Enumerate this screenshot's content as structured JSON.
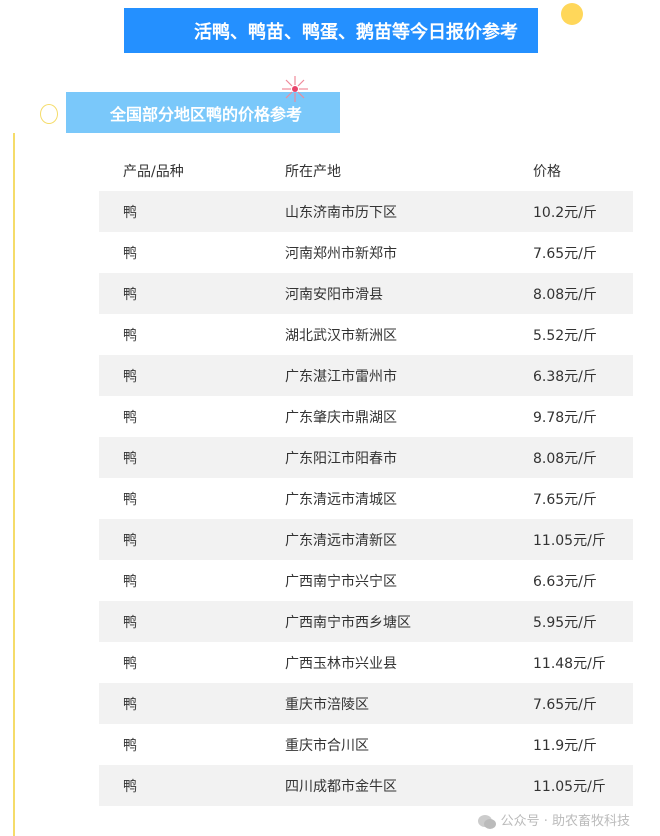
{
  "title": "活鸭、鸭苗、鸭蛋、鹅苗等今日报价参考",
  "subtitle": "全国部分地区鸭的价格参考",
  "table": {
    "headers": [
      "产品/品种",
      "所在产地",
      "价格"
    ],
    "rows": [
      [
        "鸭",
        "山东济南市历下区",
        "10.2元/斤"
      ],
      [
        "鸭",
        "河南郑州市新郑市",
        "7.65元/斤"
      ],
      [
        "鸭",
        "河南安阳市滑县",
        "8.08元/斤"
      ],
      [
        "鸭",
        "湖北武汉市新洲区",
        "5.52元/斤"
      ],
      [
        "鸭",
        "广东湛江市雷州市",
        "6.38元/斤"
      ],
      [
        "鸭",
        "广东肇庆市鼎湖区",
        "9.78元/斤"
      ],
      [
        "鸭",
        "广东阳江市阳春市",
        "8.08元/斤"
      ],
      [
        "鸭",
        "广东清远市清城区",
        "7.65元/斤"
      ],
      [
        "鸭",
        "广东清远市清新区",
        "11.05元/斤"
      ],
      [
        "鸭",
        "广西南宁市兴宁区",
        "6.63元/斤"
      ],
      [
        "鸭",
        "广西南宁市西乡塘区",
        "5.95元/斤"
      ],
      [
        "鸭",
        "广西玉林市兴业县",
        "11.48元/斤"
      ],
      [
        "鸭",
        "重庆市涪陵区",
        "7.65元/斤"
      ],
      [
        "鸭",
        "重庆市合川区",
        "11.9元/斤"
      ],
      [
        "鸭",
        "四川成都市金牛区",
        "11.05元/斤"
      ]
    ]
  },
  "watermark": "公众号 · 助农畜牧科技",
  "colors": {
    "banner": "#2490ff",
    "subbanner": "#7ac8fa",
    "accent": "#ffd75a"
  }
}
